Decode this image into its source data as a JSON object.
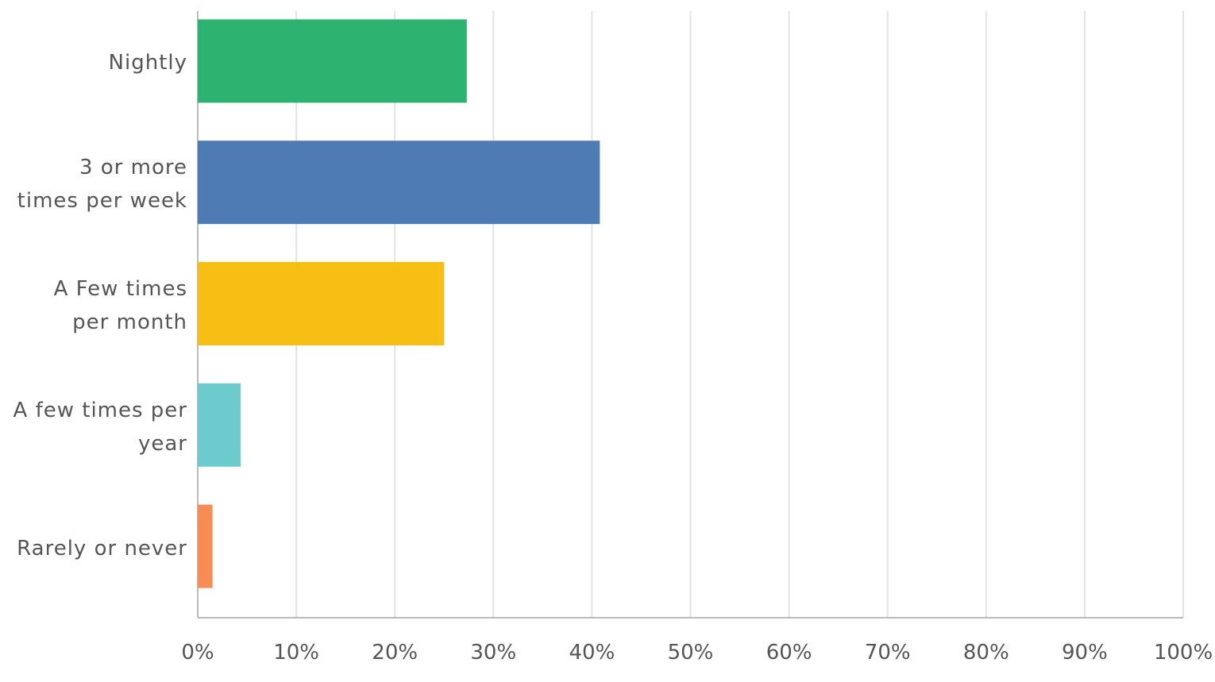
{
  "chart_data": {
    "type": "hbar",
    "categories": [
      "Nightly",
      "3 or more times per week",
      "A Few times per month",
      "A few times per year",
      "Rarely or never"
    ],
    "values": [
      27.3,
      40.8,
      25.0,
      4.35,
      1.5
    ],
    "colors": [
      "#2db36f",
      "#4f7bb5",
      "#f7bf14",
      "#6ccbcd",
      "#f78d55"
    ],
    "xlim": [
      0,
      100
    ],
    "xticks": [
      {
        "value": 0,
        "label": "0%"
      },
      {
        "value": 10,
        "label": "10%"
      },
      {
        "value": 20,
        "label": "20%"
      },
      {
        "value": 30,
        "label": "30%"
      },
      {
        "value": 40,
        "label": "40%"
      },
      {
        "value": 50,
        "label": "50%"
      },
      {
        "value": 60,
        "label": "60%"
      },
      {
        "value": 70,
        "label": "70%"
      },
      {
        "value": 80,
        "label": "80%"
      },
      {
        "value": 90,
        "label": "90%"
      },
      {
        "value": 100,
        "label": "100%"
      }
    ],
    "grid": true
  }
}
